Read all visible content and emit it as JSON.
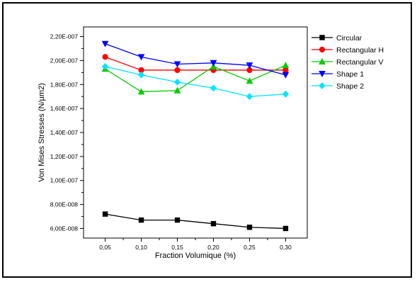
{
  "chart_data": {
    "type": "line",
    "xlabel": "Fraction Volumique (%)",
    "ylabel": "Von Mises Stresses (N/µm2)",
    "x": [
      0.05,
      0.1,
      0.15,
      0.2,
      0.25,
      0.3
    ],
    "x_tick_labels": [
      "0,05",
      "0,10",
      "0,15",
      "0,20",
      "0,25",
      "0,30"
    ],
    "xlim": [
      0.02,
      0.33
    ],
    "ylim": [
      5.2e-08,
      2.28e-07
    ],
    "y_ticks": [
      6e-08,
      8e-08,
      1e-07,
      1.2e-07,
      1.4e-07,
      1.6e-07,
      1.8e-07,
      2e-07,
      2.2e-07
    ],
    "y_tick_labels": [
      "6,00E-008",
      "8,00E-008",
      "1,00E-007",
      "1,20E-007",
      "1,40E-007",
      "1,60E-007",
      "1,80E-007",
      "2,00E-007",
      "2,20E-007"
    ],
    "grid": false,
    "legend_position": "right",
    "series": [
      {
        "name": "Circular",
        "color": "#000000",
        "marker": "square",
        "values": [
          7.2e-08,
          6.7e-08,
          6.7e-08,
          6.4e-08,
          6.1e-08,
          6e-08
        ]
      },
      {
        "name": "Rectangular H",
        "color": "#ff0000",
        "marker": "circle",
        "values": [
          2.03e-07,
          1.92e-07,
          1.92e-07,
          1.92e-07,
          1.92e-07,
          1.92e-07
        ]
      },
      {
        "name": "Rectangular V",
        "color": "#00cc00",
        "marker": "triangle-up",
        "values": [
          1.93e-07,
          1.74e-07,
          1.75e-07,
          1.95e-07,
          1.83e-07,
          1.96e-07
        ]
      },
      {
        "name": "Shape 1",
        "color": "#0000ff",
        "marker": "triangle-down",
        "values": [
          2.14e-07,
          2.03e-07,
          1.97e-07,
          1.98e-07,
          1.96e-07,
          1.88e-07
        ]
      },
      {
        "name": "Shape 2",
        "color": "#00e5ff",
        "marker": "diamond",
        "values": [
          1.95e-07,
          1.88e-07,
          1.82e-07,
          1.77e-07,
          1.7e-07,
          1.72e-07
        ]
      }
    ]
  }
}
